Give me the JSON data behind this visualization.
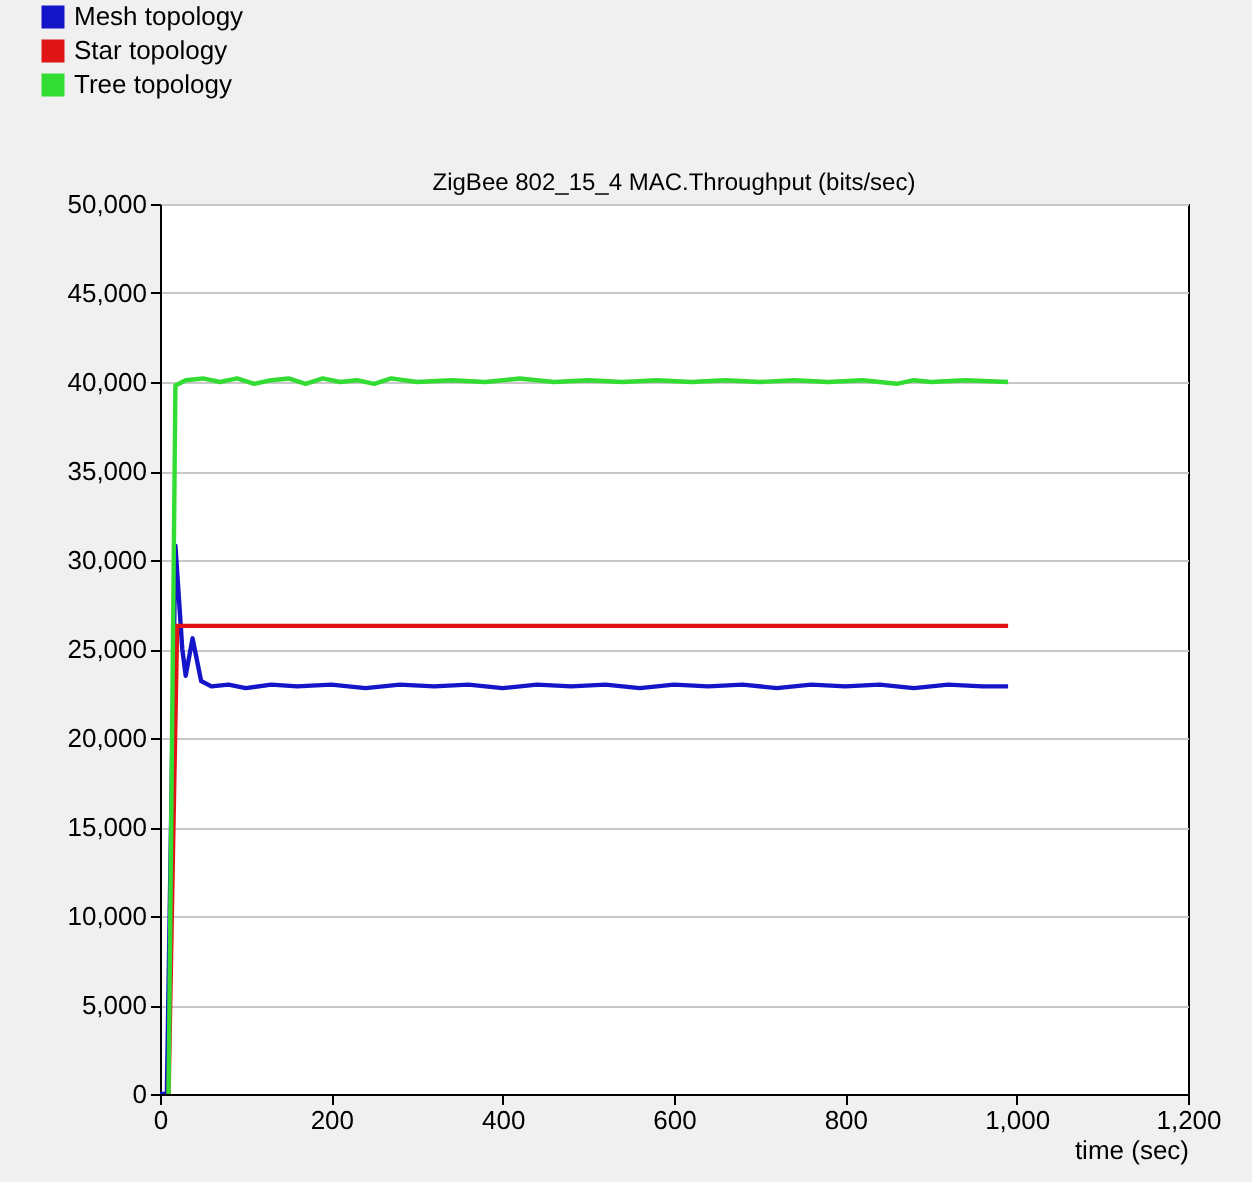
{
  "chart_data": {
    "type": "line",
    "title": "ZigBee 802_15_4 MAC.Throughput (bits/sec)",
    "xlabel": "time (sec)",
    "xlim": [
      0,
      1200
    ],
    "xticks": [
      0,
      200,
      400,
      600,
      800,
      {
        "value": 1000,
        "label": "1,000"
      },
      {
        "value": 1200,
        "label": "1,200"
      }
    ],
    "ylim": [
      0,
      50000
    ],
    "yticks": [
      {
        "value": 0,
        "label": "0"
      },
      {
        "value": 5000,
        "label": "5,000"
      },
      {
        "value": 10000,
        "label": "10,000"
      },
      {
        "value": 15000,
        "label": "15,000"
      },
      {
        "value": 20000,
        "label": "20,000"
      },
      {
        "value": 25000,
        "label": "25,000"
      },
      {
        "value": 30000,
        "label": "30,000"
      },
      {
        "value": 35000,
        "label": "35,000"
      },
      {
        "value": 40000,
        "label": "40,000"
      },
      {
        "value": 45000,
        "label": "45,000"
      },
      {
        "value": 50000,
        "label": "50,000"
      }
    ],
    "grid": "y",
    "legend": "top left",
    "marker": "none",
    "line_style": "solid",
    "series": [
      {
        "name": "Mesh topology",
        "color": "#1414c8",
        "x": [
          0,
          8,
          18,
          26,
          30,
          38,
          48,
          60,
          80,
          100,
          130,
          160,
          200,
          240,
          280,
          320,
          360,
          400,
          440,
          480,
          520,
          560,
          600,
          640,
          680,
          720,
          760,
          800,
          840,
          880,
          920,
          960,
          990
        ],
        "values": [
          0,
          0,
          30800,
          25000,
          23500,
          25600,
          23200,
          22900,
          23000,
          22800,
          23000,
          22900,
          23000,
          22800,
          23000,
          22900,
          23000,
          22800,
          23000,
          22900,
          23000,
          22800,
          23000,
          22900,
          23000,
          22800,
          23000,
          22900,
          23000,
          22800,
          23000,
          22900,
          22900
        ]
      },
      {
        "name": "Star topology",
        "color": "#e01414",
        "x": [
          10,
          20,
          990
        ],
        "values": [
          0,
          26300,
          26300
        ]
      },
      {
        "name": "Tree topology",
        "color": "#32dc32",
        "x": [
          10,
          18,
          30,
          50,
          70,
          90,
          110,
          130,
          150,
          170,
          190,
          210,
          230,
          250,
          270,
          300,
          340,
          380,
          420,
          460,
          500,
          540,
          580,
          620,
          660,
          700,
          740,
          780,
          820,
          860,
          880,
          900,
          940,
          990
        ],
        "values": [
          0,
          39800,
          40100,
          40200,
          40000,
          40200,
          39900,
          40100,
          40200,
          39900,
          40200,
          40000,
          40100,
          39900,
          40200,
          40000,
          40100,
          40000,
          40200,
          40000,
          40100,
          40000,
          40100,
          40000,
          40100,
          40000,
          40100,
          40000,
          40100,
          39900,
          40100,
          40000,
          40100,
          40000
        ]
      }
    ]
  }
}
